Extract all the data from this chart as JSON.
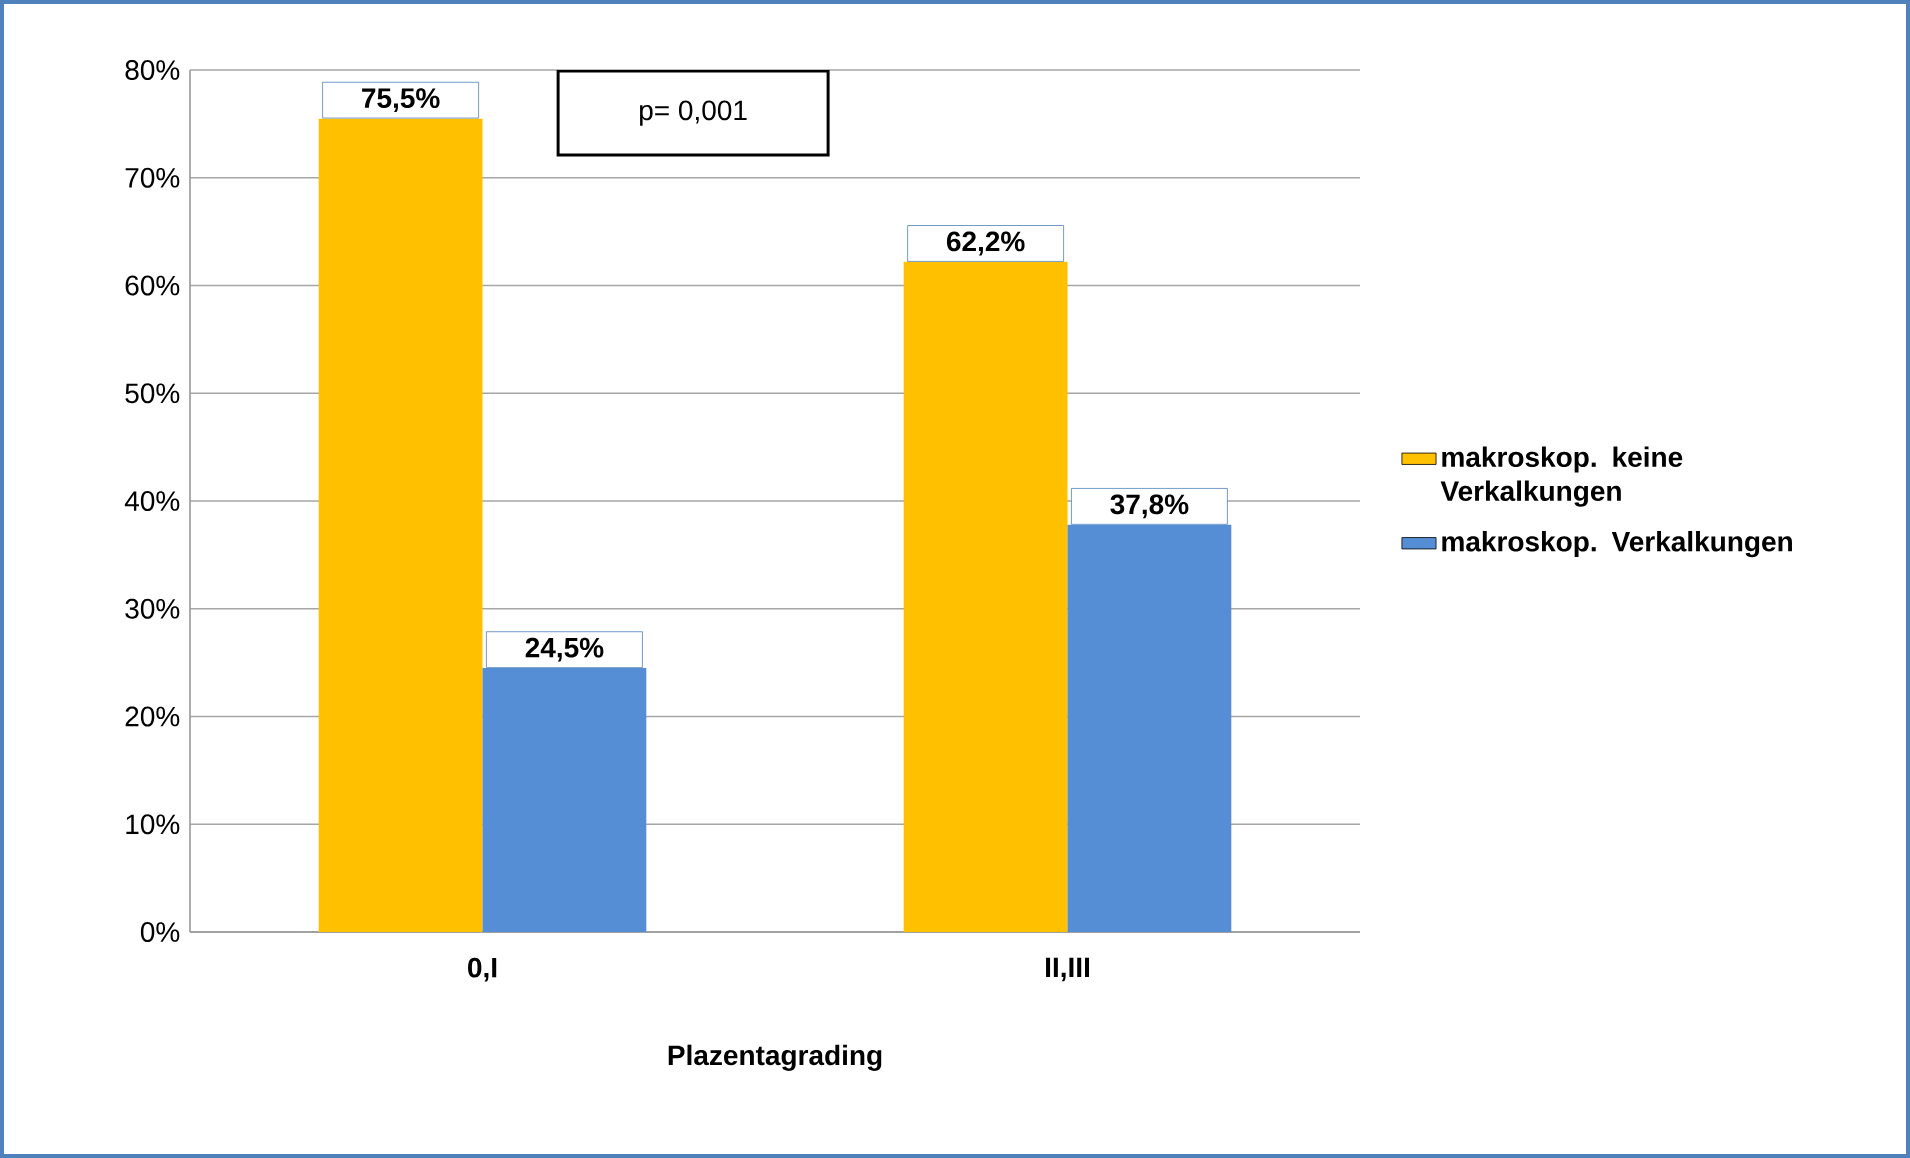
{
  "chart_data": {
    "type": "bar",
    "categories": [
      "0,I",
      "II,III"
    ],
    "series": [
      {
        "name": "makroskop. keine Verkalkungen",
        "color": "#ffc000",
        "values": [
          75.5,
          62.2
        ],
        "value_labels": [
          "75,5%",
          "62,2%"
        ]
      },
      {
        "name": "makroskop. Verkalkungen",
        "color": "#558ed5",
        "values": [
          24.5,
          37.8
        ],
        "value_labels": [
          "24,5%",
          "37,8%"
        ]
      }
    ],
    "xlabel": "Plazentagrading",
    "annotations": [
      "p= 0,001"
    ],
    "ylim": [
      0,
      80
    ],
    "yticks": [
      {
        "value": 0,
        "label": "0%"
      },
      {
        "value": 10,
        "label": "10%"
      },
      {
        "value": 20,
        "label": "20%"
      },
      {
        "value": 30,
        "label": "30%"
      },
      {
        "value": 40,
        "label": "40%"
      },
      {
        "value": 50,
        "label": "50%"
      },
      {
        "value": 60,
        "label": "60%"
      },
      {
        "value": 70,
        "label": "70%"
      },
      {
        "value": 80,
        "label": "80%"
      }
    ],
    "grid": "y",
    "legend": "right"
  }
}
